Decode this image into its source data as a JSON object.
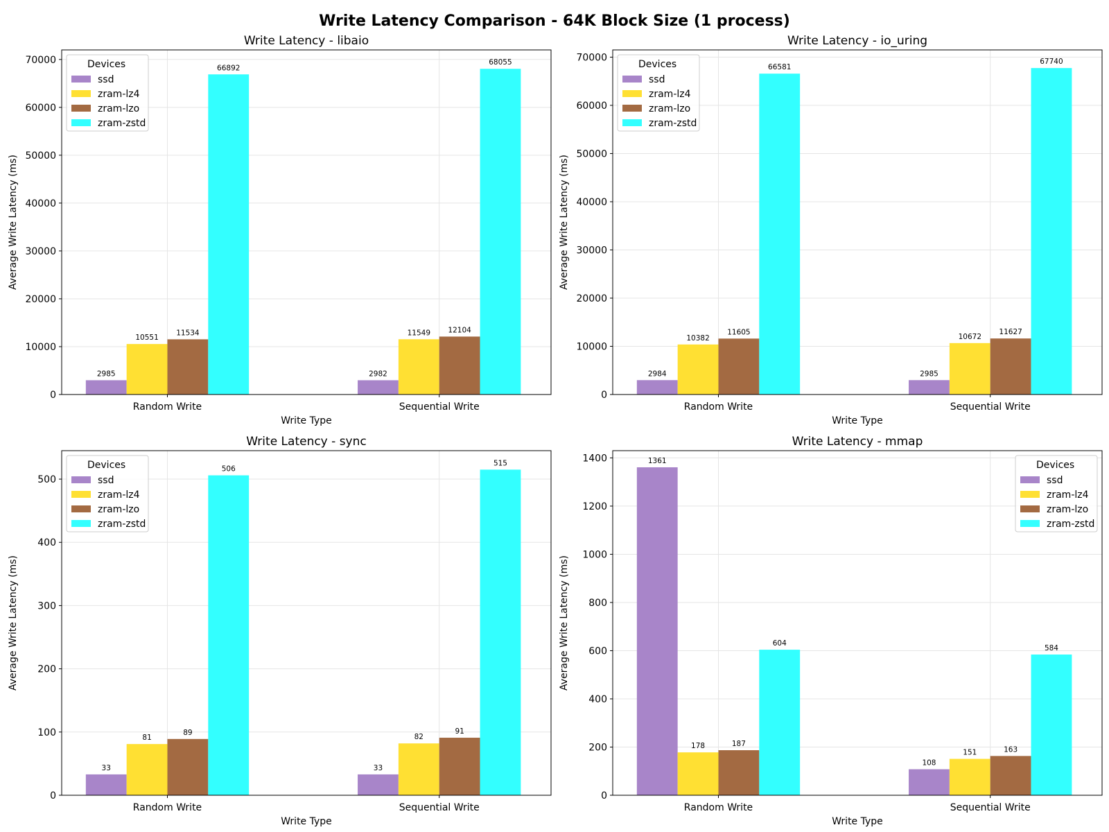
{
  "figure": {
    "suptitle": "Write Latency Comparison - 64K Block Size (1 process)"
  },
  "style": {
    "series_colors": [
      "#a885c9",
      "#ffe033",
      "#a36a42",
      "#33ffff"
    ],
    "grid_color": "#e5e5e5",
    "axis_color": "#000000"
  },
  "chart_data": [
    {
      "type": "bar",
      "title": "Write Latency - libaio",
      "xlabel": "Write Type",
      "ylabel": "Average Write Latency (ms)",
      "categories": [
        "Random Write",
        "Sequential Write"
      ],
      "ylim": [
        0,
        72000
      ],
      "yticks": [
        0,
        10000,
        20000,
        30000,
        40000,
        50000,
        60000,
        70000
      ],
      "grid": true,
      "legend": {
        "title": "Devices",
        "position": "upper-left"
      },
      "series": [
        {
          "name": "ssd",
          "values": [
            2985,
            2982
          ]
        },
        {
          "name": "zram-lz4",
          "values": [
            10551,
            11549
          ]
        },
        {
          "name": "zram-lzo",
          "values": [
            11534,
            12104
          ]
        },
        {
          "name": "zram-zstd",
          "values": [
            66892,
            68055
          ]
        }
      ]
    },
    {
      "type": "bar",
      "title": "Write Latency - io_uring",
      "xlabel": "Write Type",
      "ylabel": "Average Write Latency (ms)",
      "categories": [
        "Random Write",
        "Sequential Write"
      ],
      "ylim": [
        0,
        71500
      ],
      "yticks": [
        0,
        10000,
        20000,
        30000,
        40000,
        50000,
        60000,
        70000
      ],
      "grid": true,
      "legend": {
        "title": "Devices",
        "position": "upper-left"
      },
      "series": [
        {
          "name": "ssd",
          "values": [
            2984,
            2985
          ]
        },
        {
          "name": "zram-lz4",
          "values": [
            10382,
            10672
          ]
        },
        {
          "name": "zram-lzo",
          "values": [
            11605,
            11627
          ]
        },
        {
          "name": "zram-zstd",
          "values": [
            66581,
            67740
          ]
        }
      ]
    },
    {
      "type": "bar",
      "title": "Write Latency - sync",
      "xlabel": "Write Type",
      "ylabel": "Average Write Latency (ms)",
      "categories": [
        "Random Write",
        "Sequential Write"
      ],
      "ylim": [
        0,
        545
      ],
      "yticks": [
        0,
        100,
        200,
        300,
        400,
        500
      ],
      "grid": true,
      "legend": {
        "title": "Devices",
        "position": "upper-left"
      },
      "series": [
        {
          "name": "ssd",
          "values": [
            33,
            33
          ]
        },
        {
          "name": "zram-lz4",
          "values": [
            81,
            82
          ]
        },
        {
          "name": "zram-lzo",
          "values": [
            89,
            91
          ]
        },
        {
          "name": "zram-zstd",
          "values": [
            506,
            515
          ]
        }
      ]
    },
    {
      "type": "bar",
      "title": "Write Latency - mmap",
      "xlabel": "Write Type",
      "ylabel": "Average Write Latency (ms)",
      "categories": [
        "Random Write",
        "Sequential Write"
      ],
      "ylim": [
        0,
        1430
      ],
      "yticks": [
        0,
        200,
        400,
        600,
        800,
        1000,
        1200,
        1400
      ],
      "grid": true,
      "legend": {
        "title": "Devices",
        "position": "upper-right"
      },
      "series": [
        {
          "name": "ssd",
          "values": [
            1361,
            108
          ]
        },
        {
          "name": "zram-lz4",
          "values": [
            178,
            151
          ]
        },
        {
          "name": "zram-lzo",
          "values": [
            187,
            163
          ]
        },
        {
          "name": "zram-zstd",
          "values": [
            604,
            584
          ]
        }
      ]
    }
  ]
}
